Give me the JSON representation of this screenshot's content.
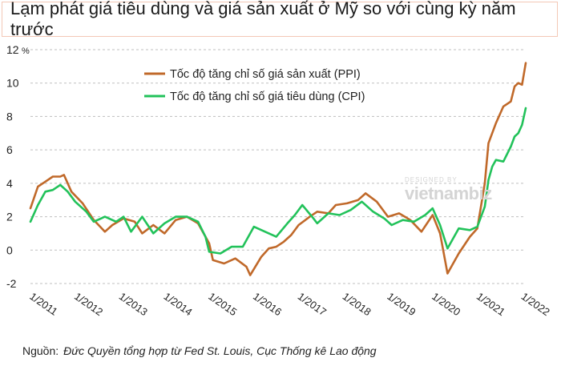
{
  "title": "Lạm phát giá tiêu dùng và giá sản xuất ở Mỹ so với cùng kỳ năm trước",
  "source": {
    "label": "Nguồn:",
    "text": "Đức Quyền tổng hợp từ Fed St. Louis, Cục Thống kê Lao động"
  },
  "watermark": {
    "small": "DESIGNED BY",
    "big": "vietnambiz"
  },
  "colors": {
    "ppi": "#c0692a",
    "cpi": "#22c25a",
    "grid": "#bfbfbf",
    "title_border": "#f3c8b6"
  },
  "chart_data": {
    "type": "line",
    "title": "Lạm phát giá tiêu dùng và giá sản xuất ở Mỹ so với cùng kỳ năm trước",
    "ylabel": "",
    "xlabel": "",
    "y_unit": "%",
    "ylim": [
      -2,
      12
    ],
    "yticks": [
      -2,
      0,
      2,
      4,
      6,
      8,
      10,
      12
    ],
    "ytick_labels": [
      "-2",
      "0",
      "2",
      "4",
      "6",
      "8",
      "10",
      "12"
    ],
    "x_range": [
      "2011-01",
      "2022-02"
    ],
    "xtick_labels": [
      "1/2011",
      "1/2012",
      "1/2013",
      "1/2014",
      "1/2015",
      "1/2016",
      "1/2017",
      "1/2018",
      "1/2019",
      "1/2020",
      "1/2021",
      "1/2022"
    ],
    "grid": "horizontal dashed",
    "legend_position": "top-left",
    "series": [
      {
        "name": "Tốc độ tăng chỉ số giá sản xuất (PPI)",
        "points": [
          [
            "2011-01",
            2.5
          ],
          [
            "2011-03",
            3.8
          ],
          [
            "2011-05",
            4.1
          ],
          [
            "2011-07",
            4.4
          ],
          [
            "2011-09",
            4.4
          ],
          [
            "2011-10",
            4.5
          ],
          [
            "2011-12",
            3.5
          ],
          [
            "2012-03",
            2.8
          ],
          [
            "2012-06",
            1.8
          ],
          [
            "2012-09",
            1.1
          ],
          [
            "2012-11",
            1.5
          ],
          [
            "2013-02",
            1.9
          ],
          [
            "2013-05",
            1.7
          ],
          [
            "2013-07",
            1.0
          ],
          [
            "2013-10",
            1.5
          ],
          [
            "2014-01",
            1.0
          ],
          [
            "2014-04",
            1.8
          ],
          [
            "2014-07",
            2.0
          ],
          [
            "2014-10",
            1.6
          ],
          [
            "2015-01",
            0.4
          ],
          [
            "2015-02",
            -0.6
          ],
          [
            "2015-05",
            -0.8
          ],
          [
            "2015-08",
            -0.5
          ],
          [
            "2015-11",
            -1.0
          ],
          [
            "2015-12",
            -1.5
          ],
          [
            "2016-03",
            -0.4
          ],
          [
            "2016-05",
            0.1
          ],
          [
            "2016-07",
            0.2
          ],
          [
            "2016-09",
            0.5
          ],
          [
            "2016-11",
            0.9
          ],
          [
            "2017-01",
            1.5
          ],
          [
            "2017-04",
            2.0
          ],
          [
            "2017-06",
            2.3
          ],
          [
            "2017-09",
            2.2
          ],
          [
            "2017-11",
            2.7
          ],
          [
            "2018-02",
            2.8
          ],
          [
            "2018-05",
            3.0
          ],
          [
            "2018-07",
            3.4
          ],
          [
            "2018-10",
            2.9
          ],
          [
            "2019-01",
            2.0
          ],
          [
            "2019-04",
            2.2
          ],
          [
            "2019-07",
            1.8
          ],
          [
            "2019-10",
            1.1
          ],
          [
            "2020-01",
            2.1
          ],
          [
            "2020-03",
            1.0
          ],
          [
            "2020-05",
            -1.4
          ],
          [
            "2020-08",
            -0.2
          ],
          [
            "2020-11",
            0.8
          ],
          [
            "2021-01",
            1.3
          ],
          [
            "2021-03",
            4.0
          ],
          [
            "2021-04",
            6.4
          ],
          [
            "2021-06",
            7.6
          ],
          [
            "2021-08",
            8.6
          ],
          [
            "2021-10",
            8.9
          ],
          [
            "2021-11",
            9.8
          ],
          [
            "2021-12",
            10.0
          ],
          [
            "2022-01",
            9.9
          ],
          [
            "2022-02",
            11.2
          ]
        ]
      },
      {
        "name": "Tốc độ tăng chỉ số giá tiêu dùng (CPI)",
        "points": [
          [
            "2011-01",
            1.7
          ],
          [
            "2011-03",
            2.7
          ],
          [
            "2011-05",
            3.5
          ],
          [
            "2011-07",
            3.6
          ],
          [
            "2011-09",
            3.9
          ],
          [
            "2011-11",
            3.5
          ],
          [
            "2012-01",
            2.9
          ],
          [
            "2012-04",
            2.3
          ],
          [
            "2012-06",
            1.7
          ],
          [
            "2012-09",
            2.0
          ],
          [
            "2012-12",
            1.7
          ],
          [
            "2013-02",
            2.0
          ],
          [
            "2013-04",
            1.1
          ],
          [
            "2013-07",
            2.0
          ],
          [
            "2013-10",
            1.0
          ],
          [
            "2014-01",
            1.6
          ],
          [
            "2014-04",
            2.0
          ],
          [
            "2014-07",
            2.0
          ],
          [
            "2014-10",
            1.7
          ],
          [
            "2014-12",
            0.8
          ],
          [
            "2015-01",
            -0.1
          ],
          [
            "2015-04",
            -0.2
          ],
          [
            "2015-07",
            0.2
          ],
          [
            "2015-10",
            0.2
          ],
          [
            "2016-01",
            1.4
          ],
          [
            "2016-04",
            1.1
          ],
          [
            "2016-07",
            0.8
          ],
          [
            "2016-10",
            1.6
          ],
          [
            "2016-12",
            2.1
          ],
          [
            "2017-02",
            2.7
          ],
          [
            "2017-05",
            1.9
          ],
          [
            "2017-06",
            1.6
          ],
          [
            "2017-09",
            2.2
          ],
          [
            "2017-12",
            2.1
          ],
          [
            "2018-03",
            2.4
          ],
          [
            "2018-06",
            2.9
          ],
          [
            "2018-09",
            2.3
          ],
          [
            "2018-12",
            1.9
          ],
          [
            "2019-02",
            1.5
          ],
          [
            "2019-05",
            1.8
          ],
          [
            "2019-08",
            1.7
          ],
          [
            "2019-11",
            2.1
          ],
          [
            "2020-01",
            2.5
          ],
          [
            "2020-03",
            1.5
          ],
          [
            "2020-05",
            0.1
          ],
          [
            "2020-08",
            1.3
          ],
          [
            "2020-11",
            1.2
          ],
          [
            "2021-01",
            1.4
          ],
          [
            "2021-03",
            2.6
          ],
          [
            "2021-04",
            4.2
          ],
          [
            "2021-05",
            5.0
          ],
          [
            "2021-06",
            5.4
          ],
          [
            "2021-08",
            5.3
          ],
          [
            "2021-10",
            6.2
          ],
          [
            "2021-11",
            6.8
          ],
          [
            "2021-12",
            7.0
          ],
          [
            "2022-01",
            7.5
          ],
          [
            "2022-02",
            8.5
          ]
        ]
      }
    ]
  }
}
